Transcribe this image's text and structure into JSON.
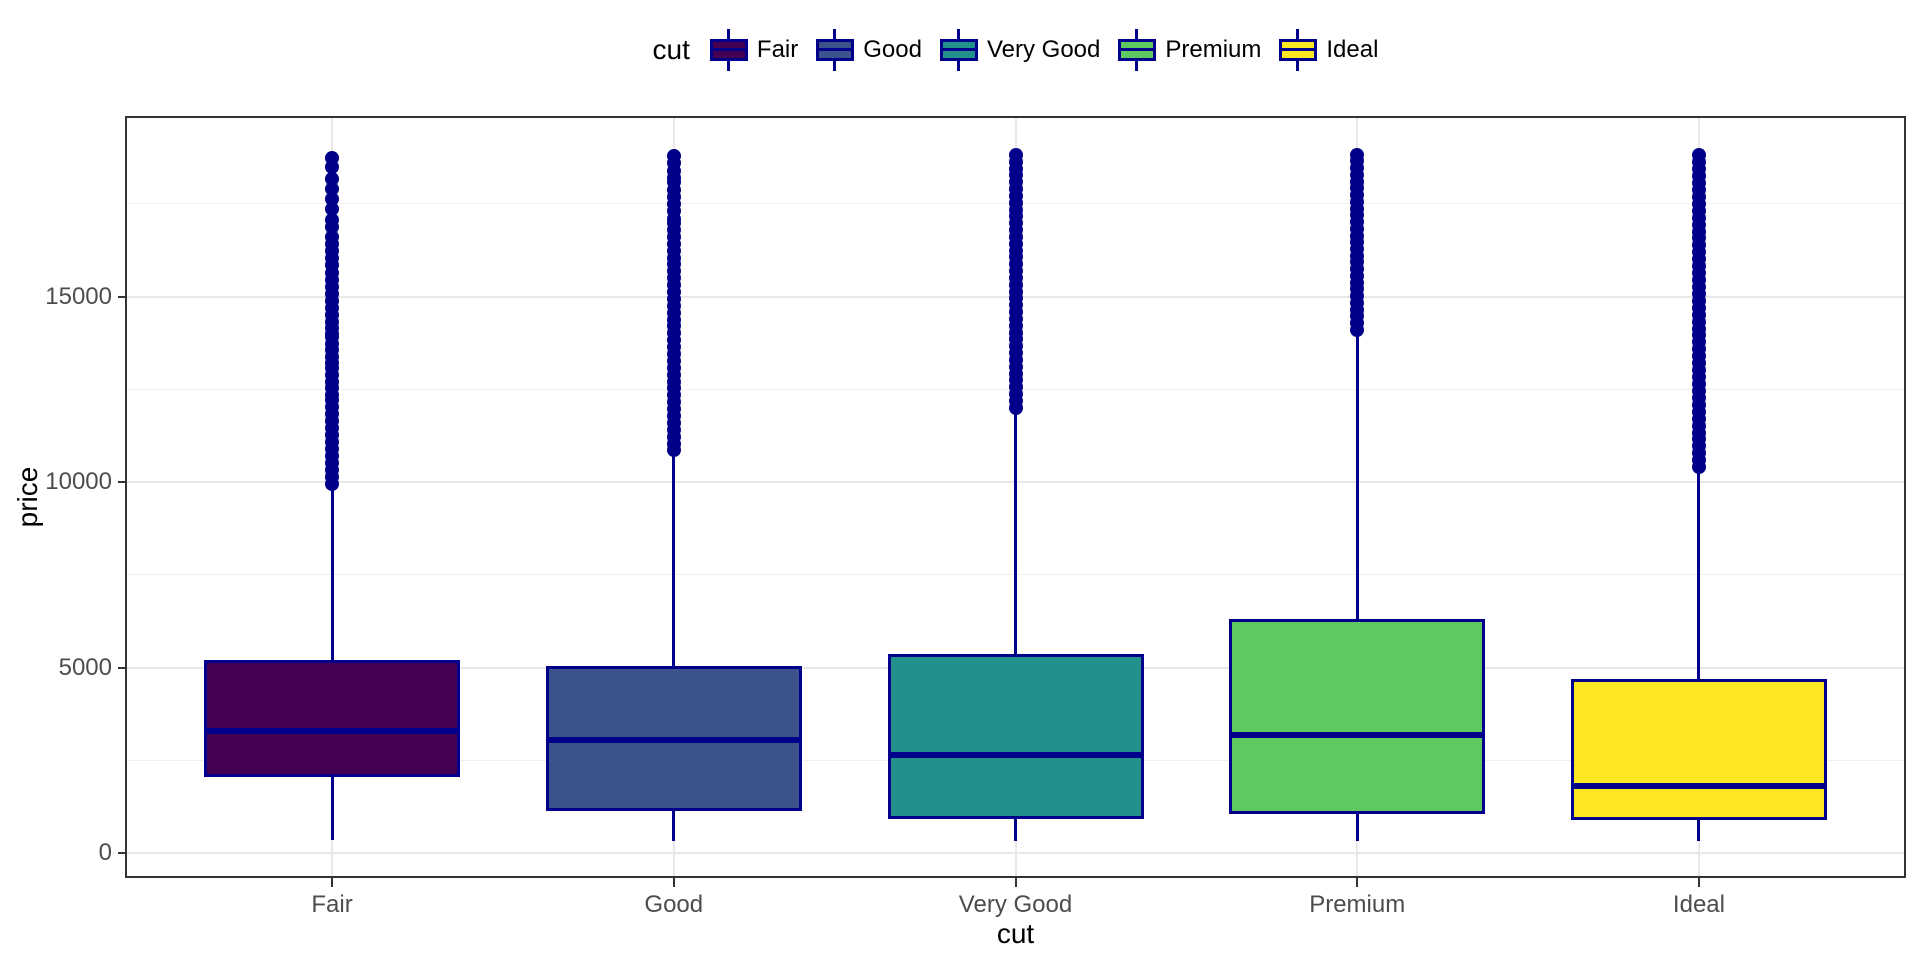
{
  "legend": {
    "title": "cut",
    "entries": [
      {
        "label": "Fair",
        "fill": "#440154"
      },
      {
        "label": "Good",
        "fill": "#3b528b"
      },
      {
        "label": "Very Good",
        "fill": "#21918c"
      },
      {
        "label": "Premium",
        "fill": "#5ec962"
      },
      {
        "label": "Ideal",
        "fill": "#fde725"
      }
    ]
  },
  "axes": {
    "x": {
      "title": "cut",
      "tick_labels": [
        "Fair",
        "Good",
        "Very Good",
        "Premium",
        "Ideal"
      ]
    },
    "y": {
      "title": "price",
      "major_ticks": [
        0,
        5000,
        10000,
        15000
      ],
      "minor_ticks": [
        2500,
        7500,
        12500,
        17500
      ]
    }
  },
  "colors": {
    "stroke": "#00008b",
    "panel_border": "#333333",
    "grid_major": "#e8e8e8",
    "grid_minor": "#efefef",
    "tick_text": "#4d4d4d",
    "tick_mark": "#333333"
  },
  "chart_data": {
    "type": "boxplot",
    "title": "",
    "xlabel": "cut",
    "ylabel": "price",
    "ylim": [
      -600,
      19800
    ],
    "grid": true,
    "legend_position": "top",
    "categories": [
      "Fair",
      "Good",
      "Very Good",
      "Premium",
      "Ideal"
    ],
    "series": [
      {
        "name": "Fair",
        "fill": "#440154",
        "min": 337,
        "q1": 2050,
        "median": 3282,
        "q3": 5206,
        "whisker_high": 9900,
        "max": 18730,
        "outlier_sparse": [
          18730,
          18480,
          18160,
          17900,
          17620,
          17360,
          17060,
          16880
        ],
        "outlier_segments": [
          [
            9950,
            12210
          ],
          [
            12345,
            13070
          ],
          [
            13200,
            13900
          ],
          [
            14000,
            14310
          ],
          [
            14500,
            16600
          ]
        ]
      },
      {
        "name": "Good",
        "fill": "#3b528b",
        "min": 327,
        "q1": 1145,
        "median": 3050,
        "q3": 5028,
        "whisker_high": 10850,
        "max": 18788,
        "outlier_sparse": [],
        "outlier_segments": [
          [
            10850,
            16980
          ],
          [
            17100,
            18080
          ],
          [
            18200,
            18788
          ]
        ]
      },
      {
        "name": "Very Good",
        "fill": "#21918c",
        "min": 336,
        "q1": 912,
        "median": 2648,
        "q3": 5373,
        "whisker_high": 12000,
        "max": 18818,
        "outlier_sparse": [],
        "outlier_segments": [
          [
            12000,
            18818
          ]
        ]
      },
      {
        "name": "Premium",
        "fill": "#5ec962",
        "min": 326,
        "q1": 1046,
        "median": 3185,
        "q3": 6296,
        "whisker_high": 14140,
        "max": 18823,
        "outlier_sparse": [],
        "outlier_segments": [
          [
            14100,
            18823
          ]
        ]
      },
      {
        "name": "Ideal",
        "fill": "#fde725",
        "min": 326,
        "q1": 878,
        "median": 1810,
        "q3": 4679,
        "whisker_high": 10370,
        "max": 18806,
        "outlier_sparse": [],
        "outlier_segments": [
          [
            10400,
            18806
          ]
        ]
      }
    ]
  }
}
